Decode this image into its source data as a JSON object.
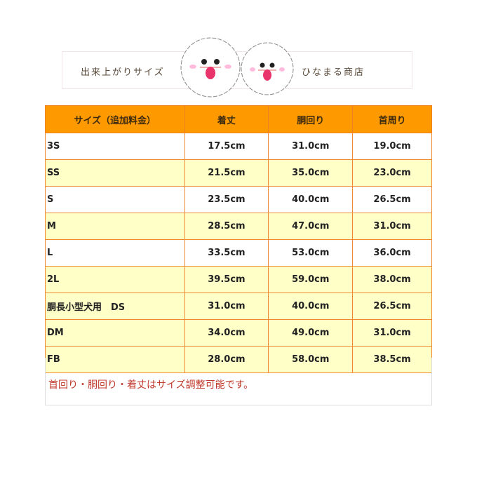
{
  "banner": {
    "left_text": "出来上がりサイズ",
    "right_text": "ひなまる商店"
  },
  "table": {
    "headers": [
      "サイズ（追加料金）",
      "着丈",
      "胴回り",
      "首周り"
    ],
    "rows": [
      {
        "size": "3S",
        "length": "17.5cm",
        "waist": "31.0cm",
        "neck": "19.0cm",
        "bg": "white"
      },
      {
        "size": "SS",
        "length": "21.5cm",
        "waist": "35.0cm",
        "neck": "23.0cm",
        "bg": "yellow"
      },
      {
        "size": "S",
        "length": "23.5cm",
        "waist": "40.0cm",
        "neck": "26.5cm",
        "bg": "white"
      },
      {
        "size": "M",
        "length": "28.5cm",
        "waist": "47.0cm",
        "neck": "31.0cm",
        "bg": "yellow"
      },
      {
        "size": "L",
        "length": "33.5cm",
        "waist": "53.0cm",
        "neck": "36.0cm",
        "bg": "white"
      },
      {
        "size": "2L",
        "length": "39.5cm",
        "waist": "59.0cm",
        "neck": "38.0cm",
        "bg": "yellow"
      },
      {
        "size": "胴長小型犬用　DS",
        "length": "31.0cm",
        "waist": "40.0cm",
        "neck": "26.5cm",
        "bg": "yellow"
      },
      {
        "size": "DM",
        "length": "34.0cm",
        "waist": "49.0cm",
        "neck": "31.0cm",
        "bg": "yellow"
      },
      {
        "size": "FB",
        "length": "28.0cm",
        "waist": "58.0cm",
        "neck": "38.5cm",
        "bg": "yellow"
      }
    ]
  },
  "note": "首回り・胴回り・着丈はサイズ調整可能です。",
  "colors": {
    "header": "#ff9900",
    "row_alt": "#ffffc8",
    "note": "#c0392b"
  }
}
